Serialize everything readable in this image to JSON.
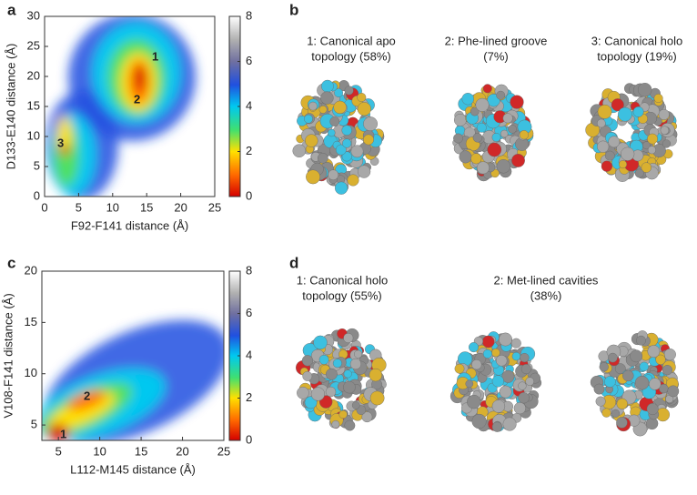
{
  "panel_labels": [
    "a",
    "b",
    "c",
    "d"
  ],
  "charts": [
    {
      "type": "density",
      "xlabel": "F92-F141 distance (Å)",
      "ylabel": "D133-E140 distance (Å)",
      "xlim": [
        0,
        25
      ],
      "xticks": [
        0,
        5,
        10,
        15,
        20,
        25
      ],
      "ylim": [
        0,
        30
      ],
      "yticks": [
        0,
        5,
        10,
        15,
        20,
        25,
        30
      ],
      "colorbar_lim": [
        0,
        8
      ],
      "colorbar_ticks": [
        0,
        2,
        4,
        6,
        8
      ],
      "annotations": [
        "1",
        "2",
        "3"
      ]
    },
    {
      "type": "density",
      "xlabel": "L112-M145 distance (Å)",
      "ylabel": "V108-F141 distance (Å)",
      "xlim": [
        3,
        25
      ],
      "xticks": [
        5,
        10,
        15,
        20,
        25
      ],
      "ylim": [
        3.5,
        20
      ],
      "yticks": [
        5,
        10,
        15,
        20
      ],
      "colorbar_lim": [
        0,
        8
      ],
      "colorbar_ticks": [
        0,
        2,
        4,
        6,
        8
      ],
      "annotations": [
        "1",
        "2"
      ]
    }
  ],
  "panel_b": {
    "captions": [
      [
        "1: Canonical apo",
        "topology (58%)"
      ],
      [
        "2: Phe-lined groove",
        "(7%)"
      ],
      [
        "3: Canonical holo",
        "topology (19%)"
      ]
    ]
  },
  "panel_d": {
    "captions": [
      [
        "1: Canonical holo",
        "topology (55%)"
      ],
      [
        "2: Met-lined cavities",
        "(38%)"
      ]
    ]
  }
}
